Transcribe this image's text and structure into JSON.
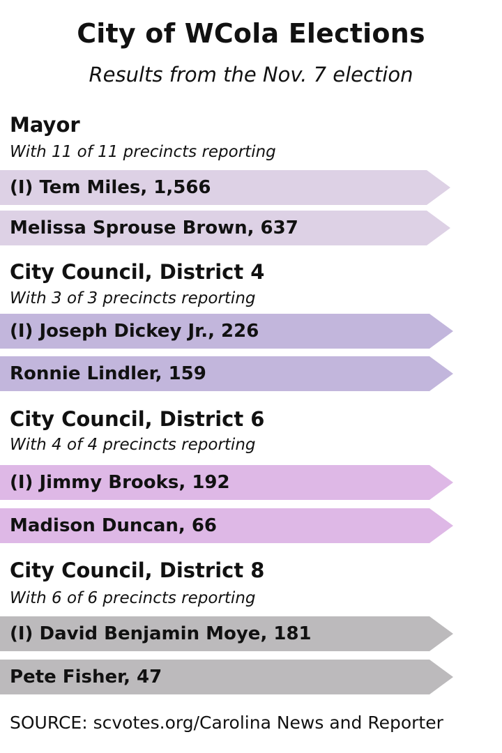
{
  "header": {
    "title": "City of WCola Elections",
    "subtitle": "Results from the Nov. 7 election"
  },
  "races": [
    {
      "name": "Mayor",
      "reporting": "With 11 of 11 precincts reporting",
      "color": "#ddd1e5",
      "candidates": [
        {
          "label": "(I) Tem Miles, 1,566",
          "votes": 1566
        },
        {
          "label": "Melissa Sprouse Brown, 637",
          "votes": 637
        }
      ]
    },
    {
      "name": "City Council, District 4",
      "reporting": "With 3 of 3 precincts reporting",
      "color": "#c2b6dc",
      "candidates": [
        {
          "label": "(I) Joseph Dickey Jr., 226",
          "votes": 226
        },
        {
          "label": "Ronnie Lindler, 159",
          "votes": 159
        }
      ]
    },
    {
      "name": "City Council, District 6",
      "reporting": "With 4 of 4 precincts reporting",
      "color": "#deb8e6",
      "candidates": [
        {
          "label": "(I) Jimmy Brooks, 192",
          "votes": 192
        },
        {
          "label": "Madison Duncan, 66",
          "votes": 66
        }
      ]
    },
    {
      "name": "City Council, District 8",
      "reporting": "With 6 of 6 precincts reporting",
      "color": "#bcbabc",
      "candidates": [
        {
          "label": "(I) David Benjamin Moye, 181",
          "votes": 181
        },
        {
          "label": "Pete Fisher, 47",
          "votes": 47
        }
      ]
    }
  ],
  "footer": {
    "source": "SOURCE: scvotes.org/Carolina News and Reporter"
  }
}
